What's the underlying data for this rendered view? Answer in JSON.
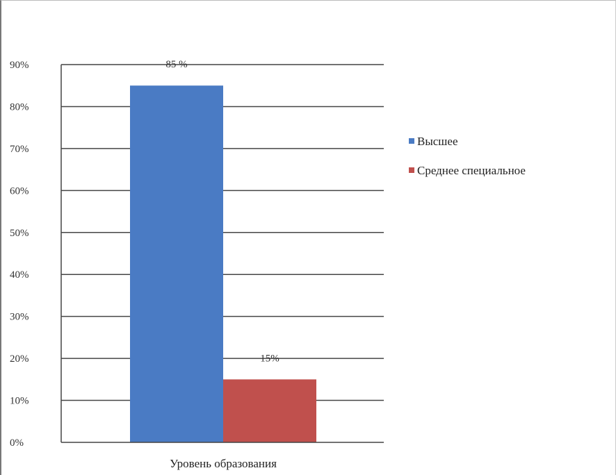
{
  "chart_data": {
    "type": "bar",
    "categories": [
      "Уровень образования"
    ],
    "series": [
      {
        "name": "Высшее",
        "values": [
          85
        ],
        "color": "#4a7bc4",
        "label": "85 %"
      },
      {
        "name": "Среднее специальное",
        "values": [
          15
        ],
        "color": "#c0504d",
        "label": "15%"
      }
    ],
    "ylim": [
      0,
      90
    ],
    "yticks": [
      0,
      10,
      20,
      30,
      40,
      50,
      60,
      70,
      80,
      90
    ],
    "ytick_labels": [
      "0%",
      "10%",
      "20%",
      "30%",
      "40%",
      "50%",
      "60%",
      "70%",
      "80%",
      "90%"
    ],
    "grid": true,
    "legend_position": "right"
  }
}
